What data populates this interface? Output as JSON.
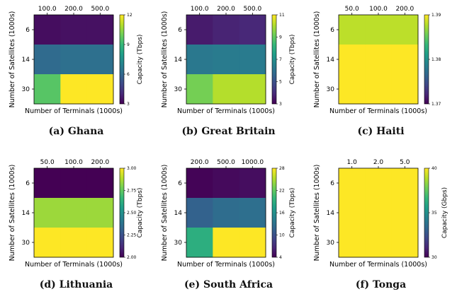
{
  "colormap": [
    "#440154",
    "#482878",
    "#3e4989",
    "#31688e",
    "#26828e",
    "#1f9e89",
    "#35b779",
    "#6ece58",
    "#b5de2b",
    "#fde725"
  ],
  "chart_data": [
    {
      "type": "heatmap",
      "caption": "(a) Ghana",
      "xlabel": "Number of Terminals (1000s)",
      "ylabel": "Number of Satellites (1000s)",
      "x_ticks": [
        "100.0",
        "200.0",
        "500.0"
      ],
      "y_ticks": [
        "6",
        "14",
        "30"
      ],
      "colorbar_label": "Capacity (Tbps)",
      "colorbar_ticks": [
        "3",
        "6",
        "9",
        "12"
      ],
      "vmin": 3,
      "vmax": 12,
      "values": [
        [
          3.3,
          3.4,
          3.4
        ],
        [
          6.1,
          6.3,
          6.3
        ],
        [
          9.6,
          12.0,
          12.0
        ]
      ]
    },
    {
      "type": "heatmap",
      "caption": "(b) Great Britain",
      "xlabel": "Number of Terminals (1000s)",
      "ylabel": "Number of Satellites (1000s)",
      "x_ticks": [
        "100.0",
        "200.0",
        "500.0"
      ],
      "y_ticks": [
        "6",
        "14",
        "30"
      ],
      "colorbar_label": "Capacity (Tbps)",
      "colorbar_ticks": [
        "3",
        "5",
        "7",
        "9",
        "11"
      ],
      "vmin": 3,
      "vmax": 11,
      "values": [
        [
          3.6,
          3.8,
          3.9
        ],
        [
          6.2,
          6.3,
          6.3
        ],
        [
          9.3,
          10.1,
          10.1
        ]
      ]
    },
    {
      "type": "heatmap",
      "caption": "(c) Haiti",
      "xlabel": "Number of Terminals (1000s)",
      "ylabel": "Number of Satellites (1000s)",
      "x_ticks": [
        "50.0",
        "100.0",
        "200.0"
      ],
      "y_ticks": [
        "6",
        "14",
        "30"
      ],
      "colorbar_label": "",
      "colorbar_ticks": [
        "1.37",
        "1.38",
        "1.39"
      ],
      "vmin": 1.37,
      "vmax": 1.39,
      "values": [
        [
          1.388,
          1.388,
          1.388
        ],
        [
          1.39,
          1.39,
          1.39
        ],
        [
          1.39,
          1.39,
          1.39
        ]
      ]
    },
    {
      "type": "heatmap",
      "caption": "(d) Lithuania",
      "xlabel": "Number of Terminals (1000s)",
      "ylabel": "Number of Satellites (1000s)",
      "x_ticks": [
        "50.0",
        "100.0",
        "200.0"
      ],
      "y_ticks": [
        "6",
        "14",
        "30"
      ],
      "colorbar_label": "Capacity (Tbps)",
      "colorbar_ticks": [
        "2.00",
        "2.25",
        "2.50",
        "2.75",
        "3.00"
      ],
      "vmin": 2.0,
      "vmax": 3.0,
      "values": [
        [
          2.0,
          2.0,
          2.0
        ],
        [
          2.85,
          2.85,
          2.85
        ],
        [
          3.0,
          3.0,
          3.0
        ]
      ]
    },
    {
      "type": "heatmap",
      "caption": "(e) South Africa",
      "xlabel": "Number of Terminals (1000s)",
      "ylabel": "Number of Satellites (1000s)",
      "x_ticks": [
        "200.0",
        "500.0",
        "1000.0"
      ],
      "y_ticks": [
        "6",
        "14",
        "30"
      ],
      "colorbar_label": "Capacity (Tbps)",
      "colorbar_ticks": [
        "4",
        "10",
        "16",
        "22",
        "28"
      ],
      "vmin": 4,
      "vmax": 28,
      "values": [
        [
          4.2,
          4.6,
          4.8
        ],
        [
          11.5,
          12.5,
          12.7
        ],
        [
          19.0,
          28.0,
          28.0
        ]
      ]
    },
    {
      "type": "heatmap",
      "caption": "(f) Tonga",
      "xlabel": "Number of Terminals (1000s)",
      "ylabel": "Number of Satellites (1000s)",
      "x_ticks": [
        "1.0",
        "2.0",
        "5.0"
      ],
      "y_ticks": [
        "6",
        "14",
        "30"
      ],
      "colorbar_label": "Capacity (Gbps)",
      "colorbar_ticks": [
        "30",
        "35",
        "40"
      ],
      "vmin": 30,
      "vmax": 40,
      "values": [
        [
          40,
          40,
          40
        ],
        [
          40,
          40,
          40
        ],
        [
          40,
          40,
          40
        ]
      ]
    }
  ]
}
